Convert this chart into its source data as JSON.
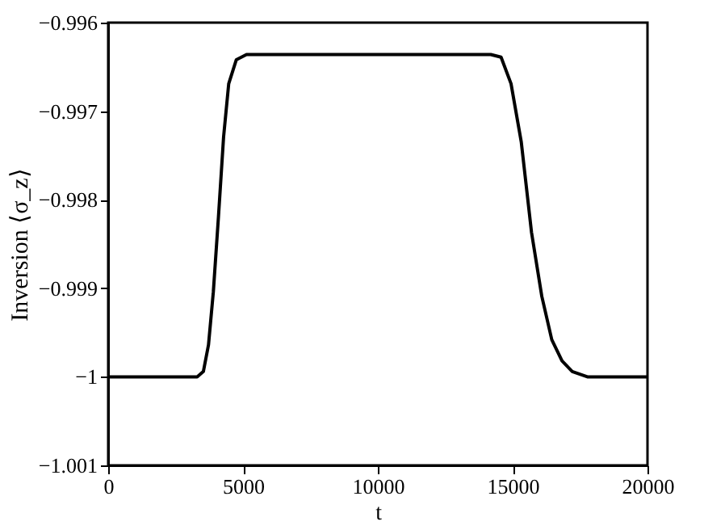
{
  "chart_data": {
    "type": "line",
    "xlabel": "t",
    "ylabel": "Inversion ⟨σ_z⟩",
    "xlim": [
      0,
      20000
    ],
    "xticks": [
      0,
      5000,
      10000,
      15000,
      20000
    ],
    "ylim": [
      -1.001,
      -0.996
    ],
    "yticks": [
      -1.001,
      -1,
      -0.999,
      -0.998,
      -0.997,
      -0.996
    ],
    "grid": false,
    "line_style": "solid",
    "marker": "none",
    "series": [
      {
        "color": "#000000",
        "x": [
          0,
          3000,
          3300,
          3530,
          3720,
          3900,
          4090,
          4280,
          4470,
          4750,
          5130,
          8000,
          11000,
          14190,
          14570,
          14940,
          15320,
          15700,
          16080,
          16450,
          16830,
          17210,
          17770,
          20000
        ],
        "values": [
          -1,
          -1,
          -1,
          -0.99994,
          -0.99964,
          -0.99904,
          -0.99819,
          -0.99729,
          -0.99669,
          -0.99642,
          -0.99636,
          -0.99636,
          -0.99636,
          -0.99636,
          -0.99639,
          -0.99669,
          -0.99735,
          -0.99837,
          -0.99909,
          -0.99958,
          -0.99982,
          -0.99994,
          -1,
          -1
        ]
      }
    ]
  }
}
